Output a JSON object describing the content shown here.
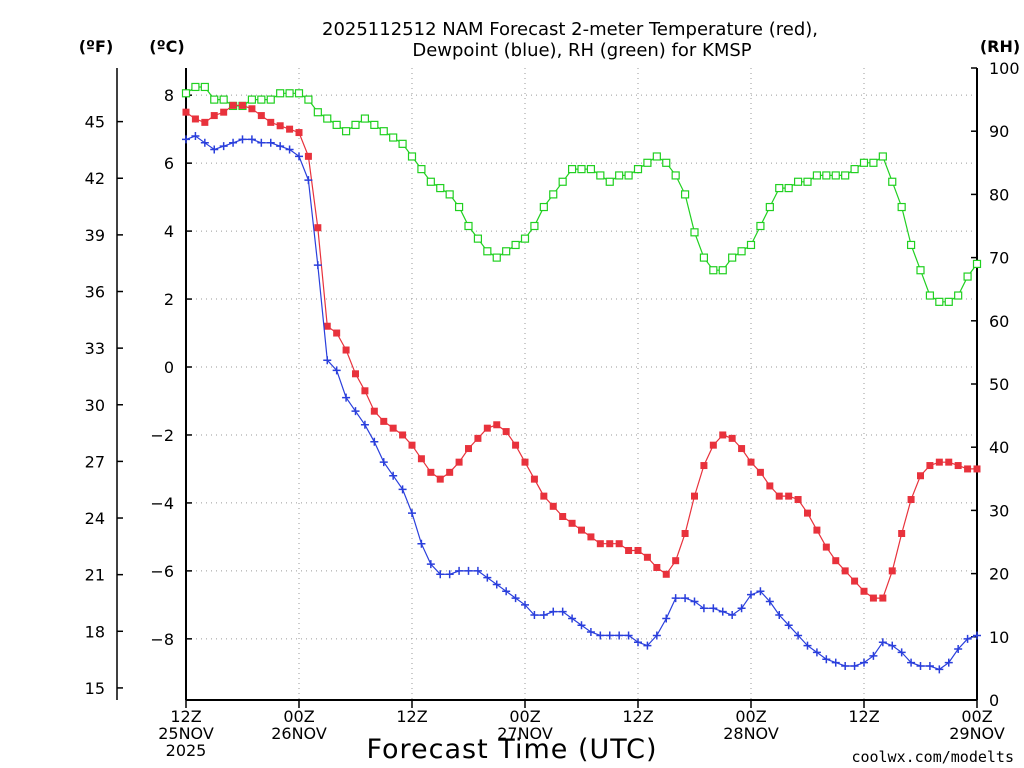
{
  "chart_data": {
    "type": "line",
    "title_lines": [
      "2025112512 NAM Forecast 2-meter Temperature (red),",
      "Dewpoint (blue), RH (green) for KMSP"
    ],
    "xlabel": "Forecast Time (UTC)",
    "credit": "coolwx.com/modelts",
    "units": {
      "fahrenheit": "(ºF)",
      "celsius": "(ºC)",
      "rh": "(RH)"
    },
    "colors": {
      "temperature": "#e8323c",
      "dewpoint": "#2a3fdc",
      "rh": "#20d020",
      "grid": "#9a9a9a"
    },
    "x_range_hours": [
      0,
      84
    ],
    "celsius_range": [
      -9.8,
      8.8
    ],
    "rh_range": [
      0,
      100
    ],
    "fahrenheit_ticks": [
      "45",
      "42",
      "39",
      "36",
      "33",
      "30",
      "27",
      "24",
      "21",
      "18",
      "15"
    ],
    "celsius_ticks": [
      "8",
      "6",
      "4",
      "2",
      "0",
      "−2",
      "−4",
      "−6",
      "−8"
    ],
    "rh_ticks": [
      "100",
      "90",
      "80",
      "70",
      "60",
      "50",
      "40",
      "30",
      "20",
      "10",
      "0"
    ],
    "x_ticks": [
      {
        "hour": 0,
        "lines": [
          "12Z",
          "25NOV",
          "2025"
        ]
      },
      {
        "hour": 12,
        "lines": [
          "00Z",
          "26NOV"
        ]
      },
      {
        "hour": 24,
        "lines": [
          "12Z"
        ]
      },
      {
        "hour": 36,
        "lines": [
          "00Z",
          "27NOV"
        ]
      },
      {
        "hour": 48,
        "lines": [
          "12Z"
        ]
      },
      {
        "hour": 60,
        "lines": [
          "00Z",
          "28NOV"
        ]
      },
      {
        "hour": 72,
        "lines": [
          "12Z"
        ]
      },
      {
        "hour": 84,
        "lines": [
          "00Z",
          "29NOV"
        ]
      }
    ],
    "series": [
      {
        "name": "Temperature",
        "unit": "C",
        "points": [
          [
            0,
            7.5
          ],
          [
            1,
            7.3
          ],
          [
            2,
            7.2
          ],
          [
            3,
            7.4
          ],
          [
            4,
            7.5
          ],
          [
            5,
            7.7
          ],
          [
            6,
            7.7
          ],
          [
            7,
            7.6
          ],
          [
            8,
            7.4
          ],
          [
            9,
            7.2
          ],
          [
            10,
            7.1
          ],
          [
            11,
            7.0
          ],
          [
            12,
            6.9
          ],
          [
            13,
            6.2
          ],
          [
            14,
            4.1
          ],
          [
            15,
            1.2
          ],
          [
            16,
            1.0
          ],
          [
            17,
            0.5
          ],
          [
            18,
            -0.2
          ],
          [
            19,
            -0.7
          ],
          [
            20,
            -1.3
          ],
          [
            21,
            -1.6
          ],
          [
            22,
            -1.8
          ],
          [
            23,
            -2.0
          ],
          [
            24,
            -2.3
          ],
          [
            25,
            -2.7
          ],
          [
            26,
            -3.1
          ],
          [
            27,
            -3.3
          ],
          [
            28,
            -3.1
          ],
          [
            29,
            -2.8
          ],
          [
            30,
            -2.4
          ],
          [
            31,
            -2.1
          ],
          [
            32,
            -1.8
          ],
          [
            33,
            -1.7
          ],
          [
            34,
            -1.9
          ],
          [
            35,
            -2.3
          ],
          [
            36,
            -2.8
          ],
          [
            37,
            -3.3
          ],
          [
            38,
            -3.8
          ],
          [
            39,
            -4.1
          ],
          [
            40,
            -4.4
          ],
          [
            41,
            -4.6
          ],
          [
            42,
            -4.8
          ],
          [
            43,
            -5.0
          ],
          [
            44,
            -5.2
          ],
          [
            45,
            -5.2
          ],
          [
            46,
            -5.2
          ],
          [
            47,
            -5.4
          ],
          [
            48,
            -5.4
          ],
          [
            49,
            -5.6
          ],
          [
            50,
            -5.9
          ],
          [
            51,
            -6.1
          ],
          [
            52,
            -5.7
          ],
          [
            53,
            -4.9
          ],
          [
            54,
            -3.8
          ],
          [
            55,
            -2.9
          ],
          [
            56,
            -2.3
          ],
          [
            57,
            -2.0
          ],
          [
            58,
            -2.1
          ],
          [
            59,
            -2.4
          ],
          [
            60,
            -2.8
          ],
          [
            61,
            -3.1
          ],
          [
            62,
            -3.5
          ],
          [
            63,
            -3.8
          ],
          [
            64,
            -3.8
          ],
          [
            65,
            -3.9
          ],
          [
            66,
            -4.3
          ],
          [
            67,
            -4.8
          ],
          [
            68,
            -5.3
          ],
          [
            69,
            -5.7
          ],
          [
            70,
            -6.0
          ],
          [
            71,
            -6.3
          ],
          [
            72,
            -6.6
          ],
          [
            73,
            -6.8
          ],
          [
            74,
            -6.8
          ],
          [
            75,
            -6.0
          ],
          [
            76,
            -4.9
          ],
          [
            77,
            -3.9
          ],
          [
            78,
            -3.2
          ],
          [
            79,
            -2.9
          ],
          [
            80,
            -2.8
          ],
          [
            81,
            -2.8
          ],
          [
            82,
            -2.9
          ],
          [
            83,
            -3.0
          ],
          [
            84,
            -3.0
          ]
        ]
      },
      {
        "name": "Dewpoint",
        "unit": "C",
        "points": [
          [
            0,
            6.7
          ],
          [
            1,
            6.8
          ],
          [
            2,
            6.6
          ],
          [
            3,
            6.4
          ],
          [
            4,
            6.5
          ],
          [
            5,
            6.6
          ],
          [
            6,
            6.7
          ],
          [
            7,
            6.7
          ],
          [
            8,
            6.6
          ],
          [
            9,
            6.6
          ],
          [
            10,
            6.5
          ],
          [
            11,
            6.4
          ],
          [
            12,
            6.2
          ],
          [
            13,
            5.5
          ],
          [
            14,
            3.0
          ],
          [
            15,
            0.2
          ],
          [
            16,
            -0.1
          ],
          [
            17,
            -0.9
          ],
          [
            18,
            -1.3
          ],
          [
            19,
            -1.7
          ],
          [
            20,
            -2.2
          ],
          [
            21,
            -2.8
          ],
          [
            22,
            -3.2
          ],
          [
            23,
            -3.6
          ],
          [
            24,
            -4.3
          ],
          [
            25,
            -5.2
          ],
          [
            26,
            -5.8
          ],
          [
            27,
            -6.1
          ],
          [
            28,
            -6.1
          ],
          [
            29,
            -6.0
          ],
          [
            30,
            -6.0
          ],
          [
            31,
            -6.0
          ],
          [
            32,
            -6.2
          ],
          [
            33,
            -6.4
          ],
          [
            34,
            -6.6
          ],
          [
            35,
            -6.8
          ],
          [
            36,
            -7.0
          ],
          [
            37,
            -7.3
          ],
          [
            38,
            -7.3
          ],
          [
            39,
            -7.2
          ],
          [
            40,
            -7.2
          ],
          [
            41,
            -7.4
          ],
          [
            42,
            -7.6
          ],
          [
            43,
            -7.8
          ],
          [
            44,
            -7.9
          ],
          [
            45,
            -7.9
          ],
          [
            46,
            -7.9
          ],
          [
            47,
            -7.9
          ],
          [
            48,
            -8.1
          ],
          [
            49,
            -8.2
          ],
          [
            50,
            -7.9
          ],
          [
            51,
            -7.4
          ],
          [
            52,
            -6.8
          ],
          [
            53,
            -6.8
          ],
          [
            54,
            -6.9
          ],
          [
            55,
            -7.1
          ],
          [
            56,
            -7.1
          ],
          [
            57,
            -7.2
          ],
          [
            58,
            -7.3
          ],
          [
            59,
            -7.1
          ],
          [
            60,
            -6.7
          ],
          [
            61,
            -6.6
          ],
          [
            62,
            -6.9
          ],
          [
            63,
            -7.3
          ],
          [
            64,
            -7.6
          ],
          [
            65,
            -7.9
          ],
          [
            66,
            -8.2
          ],
          [
            67,
            -8.4
          ],
          [
            68,
            -8.6
          ],
          [
            69,
            -8.7
          ],
          [
            70,
            -8.8
          ],
          [
            71,
            -8.8
          ],
          [
            72,
            -8.7
          ],
          [
            73,
            -8.5
          ],
          [
            74,
            -8.1
          ],
          [
            75,
            -8.2
          ],
          [
            76,
            -8.4
          ],
          [
            77,
            -8.7
          ],
          [
            78,
            -8.8
          ],
          [
            79,
            -8.8
          ],
          [
            80,
            -8.9
          ],
          [
            81,
            -8.7
          ],
          [
            82,
            -8.3
          ],
          [
            83,
            -8.0
          ],
          [
            84,
            -7.9
          ]
        ]
      },
      {
        "name": "RH",
        "unit": "%",
        "points": [
          [
            0,
            96
          ],
          [
            1,
            97
          ],
          [
            2,
            97
          ],
          [
            3,
            95
          ],
          [
            4,
            95
          ],
          [
            5,
            94
          ],
          [
            6,
            94
          ],
          [
            7,
            95
          ],
          [
            8,
            95
          ],
          [
            9,
            95
          ],
          [
            10,
            96
          ],
          [
            11,
            96
          ],
          [
            12,
            96
          ],
          [
            13,
            95
          ],
          [
            14,
            93
          ],
          [
            15,
            92
          ],
          [
            16,
            91
          ],
          [
            17,
            90
          ],
          [
            18,
            91
          ],
          [
            19,
            92
          ],
          [
            20,
            91
          ],
          [
            21,
            90
          ],
          [
            22,
            89
          ],
          [
            23,
            88
          ],
          [
            24,
            86
          ],
          [
            25,
            84
          ],
          [
            26,
            82
          ],
          [
            27,
            81
          ],
          [
            28,
            80
          ],
          [
            29,
            78
          ],
          [
            30,
            75
          ],
          [
            31,
            73
          ],
          [
            32,
            71
          ],
          [
            33,
            70
          ],
          [
            34,
            71
          ],
          [
            35,
            72
          ],
          [
            36,
            73
          ],
          [
            37,
            75
          ],
          [
            38,
            78
          ],
          [
            39,
            80
          ],
          [
            40,
            82
          ],
          [
            41,
            84
          ],
          [
            42,
            84
          ],
          [
            43,
            84
          ],
          [
            44,
            83
          ],
          [
            45,
            82
          ],
          [
            46,
            83
          ],
          [
            47,
            83
          ],
          [
            48,
            84
          ],
          [
            49,
            85
          ],
          [
            50,
            86
          ],
          [
            51,
            85
          ],
          [
            52,
            83
          ],
          [
            53,
            80
          ],
          [
            54,
            74
          ],
          [
            55,
            70
          ],
          [
            56,
            68
          ],
          [
            57,
            68
          ],
          [
            58,
            70
          ],
          [
            59,
            71
          ],
          [
            60,
            72
          ],
          [
            61,
            75
          ],
          [
            62,
            78
          ],
          [
            63,
            81
          ],
          [
            64,
            81
          ],
          [
            65,
            82
          ],
          [
            66,
            82
          ],
          [
            67,
            83
          ],
          [
            68,
            83
          ],
          [
            69,
            83
          ],
          [
            70,
            83
          ],
          [
            71,
            84
          ],
          [
            72,
            85
          ],
          [
            73,
            85
          ],
          [
            74,
            86
          ],
          [
            75,
            82
          ],
          [
            76,
            78
          ],
          [
            77,
            72
          ],
          [
            78,
            68
          ],
          [
            79,
            64
          ],
          [
            80,
            63
          ],
          [
            81,
            63
          ],
          [
            82,
            64
          ],
          [
            83,
            67
          ],
          [
            84,
            69
          ]
        ]
      }
    ]
  }
}
